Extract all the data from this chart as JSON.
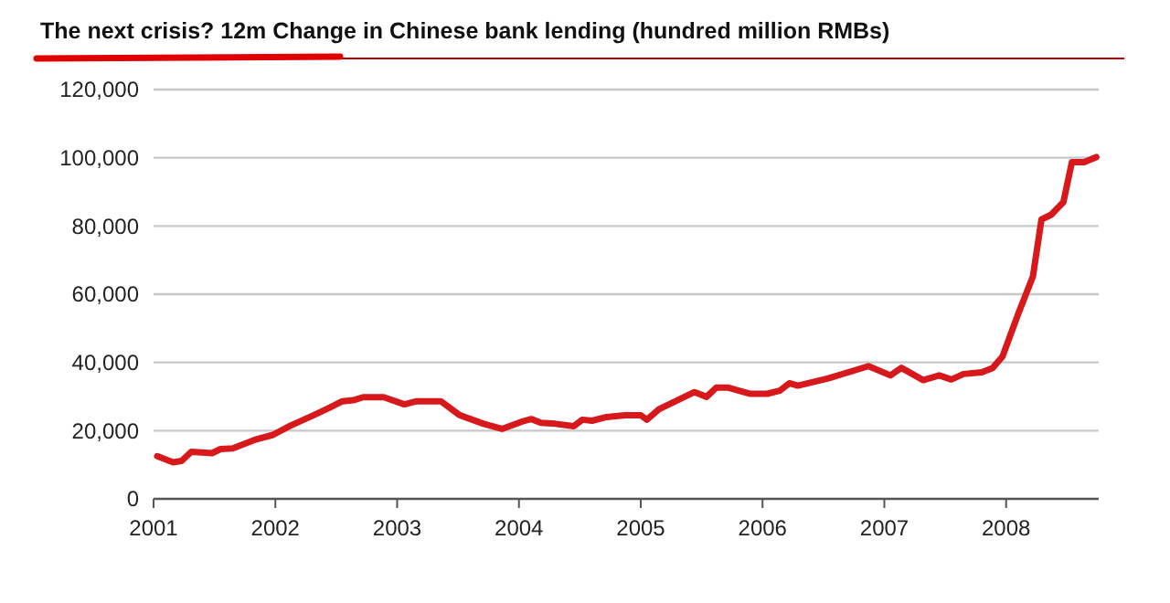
{
  "chart_data": {
    "type": "line",
    "title": "The next crisis? 12m Change in Chinese bank lending (hundred million RMBs)",
    "x": [
      2001.03,
      2001.16,
      2001.23,
      2001.31,
      2001.48,
      2001.55,
      2001.65,
      2001.83,
      2001.98,
      2002.12,
      2002.32,
      2002.45,
      2002.55,
      2002.64,
      2002.72,
      2002.89,
      2003.06,
      2003.16,
      2003.36,
      2003.51,
      2003.71,
      2003.86,
      2004.03,
      2004.1,
      2004.18,
      2004.3,
      2004.45,
      2004.52,
      2004.6,
      2004.72,
      2004.87,
      2005.0,
      2005.05,
      2005.15,
      2005.44,
      2005.54,
      2005.62,
      2005.72,
      2005.9,
      2006.04,
      2006.14,
      2006.22,
      2006.29,
      2006.54,
      2006.74,
      2006.87,
      2007.05,
      2007.14,
      2007.32,
      2007.45,
      2007.55,
      2007.65,
      2007.8,
      2007.89,
      2007.97,
      2008.1,
      2008.22,
      2008.29,
      2008.37,
      2008.47,
      2008.54,
      2008.64,
      2008.74
    ],
    "series": [
      {
        "color": "#d7191c",
        "values": [
          12500,
          10700,
          11100,
          13800,
          13400,
          14600,
          14800,
          17300,
          18750,
          21400,
          24600,
          26800,
          28600,
          28900,
          29800,
          29800,
          27700,
          28600,
          28600,
          24600,
          22000,
          20500,
          22700,
          23400,
          22300,
          22000,
          21300,
          23200,
          22900,
          24000,
          24500,
          24500,
          23200,
          26300,
          31300,
          29900,
          32600,
          32600,
          30800,
          30800,
          31700,
          33900,
          33200,
          35300,
          37500,
          38900,
          36200,
          38400,
          34800,
          36200,
          35000,
          36600,
          37100,
          38400,
          41700,
          54300,
          65200,
          81900,
          83300,
          87000,
          98700,
          98700,
          100200
        ]
      }
    ],
    "xlim": [
      2001,
      2008.76
    ],
    "xticks": [
      2001,
      2002,
      2003,
      2004,
      2005,
      2006,
      2007,
      2008
    ],
    "ylim": [
      0,
      120000
    ],
    "yticks": [
      {
        "value": 0,
        "label": "0"
      },
      {
        "value": 20000,
        "label": "20,000"
      },
      {
        "value": 40000,
        "label": "40,000"
      },
      {
        "value": 60000,
        "label": "60,000"
      },
      {
        "value": 80000,
        "label": "80,000"
      },
      {
        "value": 100000,
        "label": "100,000"
      },
      {
        "value": 120000,
        "label": "120,000"
      }
    ],
    "grid": "y",
    "marker": "none",
    "line_style": "solid"
  }
}
